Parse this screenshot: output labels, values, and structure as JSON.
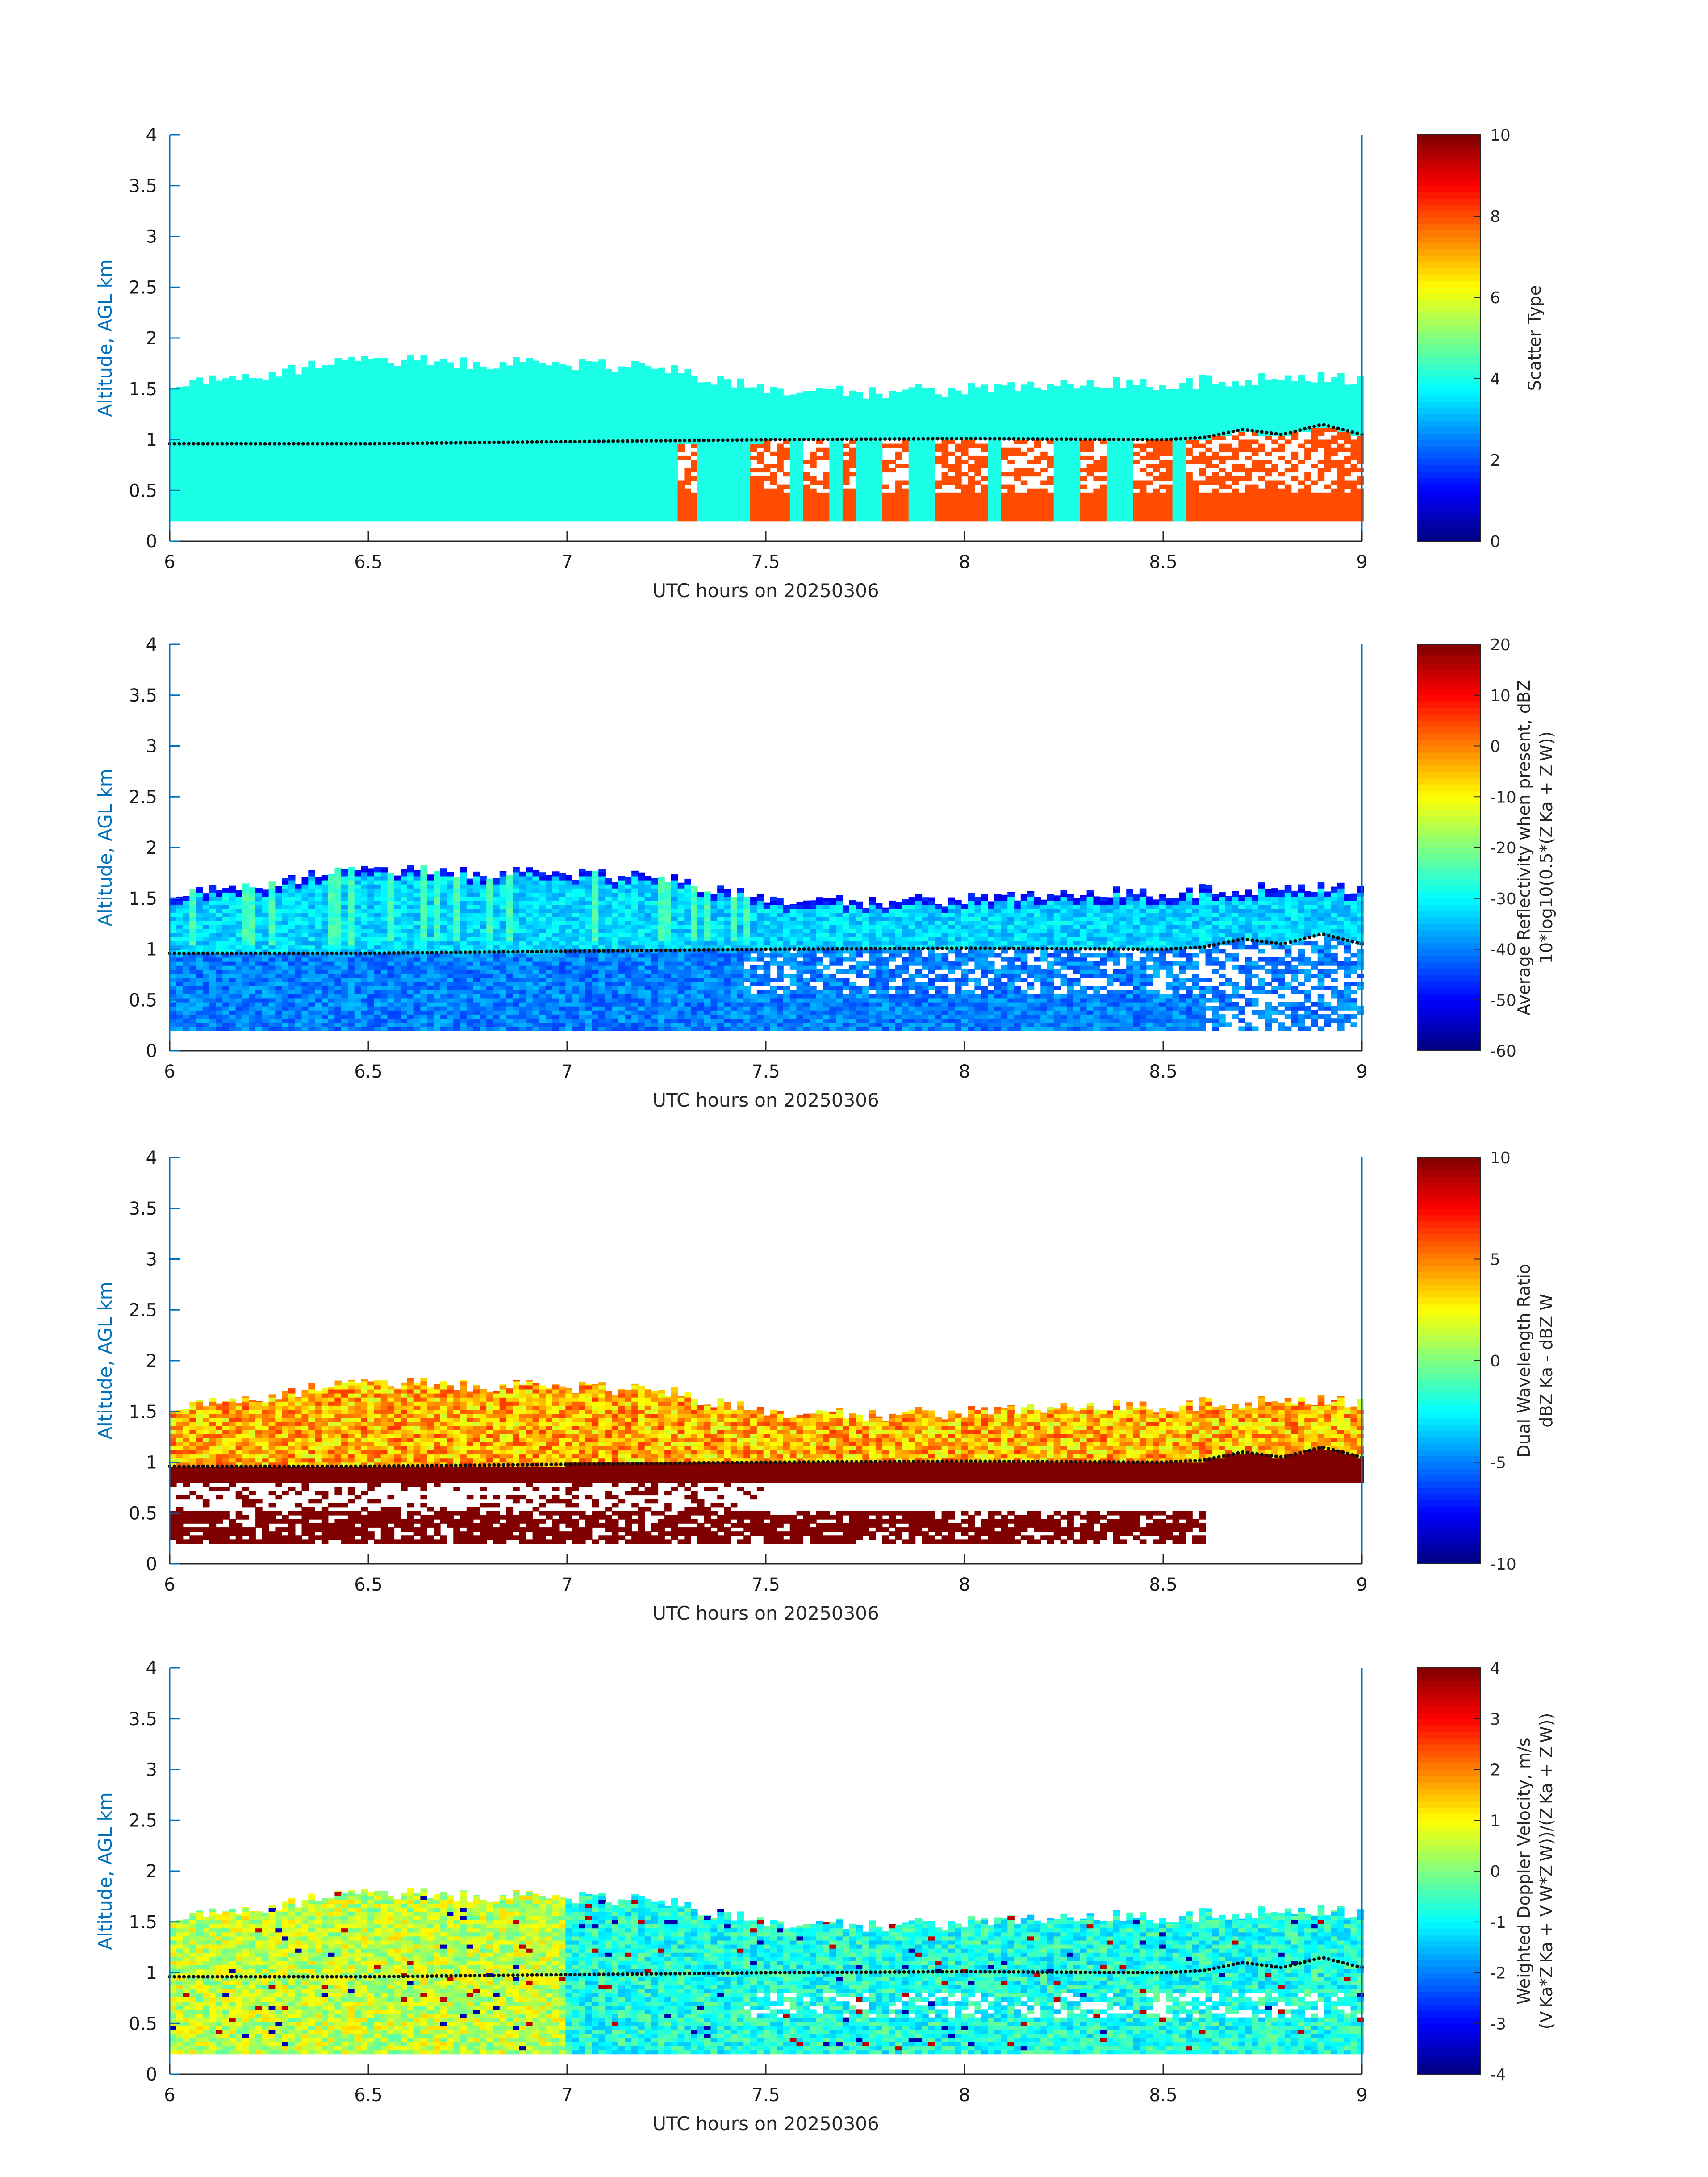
{
  "chart_data": [
    {
      "type": "heatmap",
      "title": "",
      "xlabel": "UTC hours on 20250306",
      "ylabel": "Altitude, AGL km",
      "xlim": [
        6,
        9
      ],
      "ylim": [
        0,
        4
      ],
      "xticks": [
        "6",
        "6.5",
        "7",
        "7.5",
        "8",
        "8.5",
        "9"
      ],
      "yticks": [
        "0",
        "0.5",
        "1",
        "1.5",
        "2",
        "2.5",
        "3",
        "3.5",
        "4"
      ],
      "field": "scatter",
      "colorbar": {
        "label_lines": [
          "Scatter Type"
        ],
        "range": [
          0,
          10
        ],
        "ticks": [
          "0",
          "2",
          "4",
          "6",
          "8",
          "10"
        ]
      },
      "cloud_top_profile": {
        "x": [
          6.0,
          6.25,
          6.5,
          6.75,
          7.0,
          7.25,
          7.5,
          7.75,
          8.0,
          8.25,
          8.5,
          8.75,
          9.0
        ],
        "y": [
          1.55,
          1.65,
          1.8,
          1.75,
          1.75,
          1.7,
          1.5,
          1.45,
          1.5,
          1.55,
          1.55,
          1.6,
          1.6
        ]
      },
      "cloud_base_km": 0.2,
      "melting_layer": {
        "x": [
          6.0,
          6.5,
          7.0,
          7.5,
          8.0,
          8.5,
          8.6,
          8.7,
          8.8,
          8.9,
          9.0
        ],
        "y": [
          0.96,
          0.96,
          0.98,
          1.0,
          1.01,
          1.0,
          1.02,
          1.1,
          1.05,
          1.15,
          1.05
        ]
      },
      "values_note": "background scatter type ~4 (cyan); red columns type ~8 present after 7.3 h below the melting layer"
    },
    {
      "type": "heatmap",
      "title": "",
      "xlabel": "UTC hours on 20250306",
      "ylabel": "Altitude, AGL km",
      "xlim": [
        6,
        9
      ],
      "ylim": [
        0,
        4
      ],
      "xticks": [
        "6",
        "6.5",
        "7",
        "7.5",
        "8",
        "8.5",
        "9"
      ],
      "yticks": [
        "0",
        "0.5",
        "1",
        "1.5",
        "2",
        "2.5",
        "3",
        "3.5",
        "4"
      ],
      "field": "reflectivity",
      "colorbar": {
        "label_lines": [
          "Average Reflectivity when present, dBZ",
          "10*log10(0.5*(Z Ka + Z W))"
        ],
        "range": [
          -60,
          20
        ],
        "ticks": [
          "-60",
          "-50",
          "-40",
          "-30",
          "-20",
          "-10",
          "0",
          "10",
          "20"
        ]
      },
      "cloud_top_profile": {
        "x": [
          6.0,
          6.25,
          6.5,
          6.75,
          7.0,
          7.25,
          7.5,
          7.75,
          8.0,
          8.25,
          8.5,
          8.75,
          9.0
        ],
        "y": [
          1.55,
          1.65,
          1.8,
          1.75,
          1.75,
          1.7,
          1.5,
          1.45,
          1.5,
          1.55,
          1.55,
          1.6,
          1.6
        ]
      },
      "cloud_base_km": 0.2,
      "melting_layer": {
        "x": [
          6.0,
          6.5,
          7.0,
          7.5,
          8.0,
          8.5,
          8.6,
          8.7,
          8.8,
          8.9,
          9.0
        ],
        "y": [
          0.96,
          0.96,
          0.98,
          1.0,
          1.01,
          1.0,
          1.02,
          1.1,
          1.05,
          1.15,
          1.05
        ]
      },
      "values_note": "mostly -45 to -30 dBZ, -25 dBZ streaks near cloud top, -55 dBZ edges"
    },
    {
      "type": "heatmap",
      "title": "",
      "xlabel": "UTC hours on 20250306",
      "ylabel": "Altitude, AGL km",
      "xlim": [
        6,
        9
      ],
      "ylim": [
        0,
        4
      ],
      "xticks": [
        "6",
        "6.5",
        "7",
        "7.5",
        "8",
        "8.5",
        "9"
      ],
      "yticks": [
        "0",
        "0.5",
        "1",
        "1.5",
        "2",
        "2.5",
        "3",
        "3.5",
        "4"
      ],
      "field": "dwr",
      "colorbar": {
        "label_lines": [
          "Dual Wavelength Ratio",
          "dBZ Ka - dBZ W"
        ],
        "range": [
          -10,
          10
        ],
        "ticks": [
          "-10",
          "-5",
          "0",
          "5",
          "10"
        ]
      },
      "cloud_top_profile": {
        "x": [
          6.0,
          6.25,
          6.5,
          6.75,
          7.0,
          7.25,
          7.5,
          7.75,
          8.0,
          8.25,
          8.5,
          8.75,
          9.0
        ],
        "y": [
          1.55,
          1.65,
          1.8,
          1.75,
          1.75,
          1.7,
          1.5,
          1.45,
          1.5,
          1.55,
          1.55,
          1.6,
          1.6
        ]
      },
      "cloud_base_km": 0.2,
      "melting_layer": {
        "x": [
          6.0,
          6.5,
          7.0,
          7.5,
          8.0,
          8.5,
          8.6,
          8.7,
          8.8,
          8.9,
          9.0
        ],
        "y": [
          0.96,
          0.96,
          0.98,
          1.0,
          1.01,
          1.0,
          1.02,
          1.1,
          1.05,
          1.15,
          1.05
        ]
      },
      "values_note": "+3 to +7 dB above 1 km; saturated +10 dB band at 0.85-0.95 km and in the lowest 0.5 km"
    },
    {
      "type": "heatmap",
      "title": "",
      "xlabel": "UTC hours on 20250306",
      "ylabel": "Altitude, AGL km",
      "xlim": [
        6,
        9
      ],
      "ylim": [
        0,
        4
      ],
      "xticks": [
        "6",
        "6.5",
        "7",
        "7.5",
        "8",
        "8.5",
        "9"
      ],
      "yticks": [
        "0",
        "0.5",
        "1",
        "1.5",
        "2",
        "2.5",
        "3",
        "3.5",
        "4"
      ],
      "field": "velocity",
      "colorbar": {
        "label_lines": [
          "Weighted Doppler Velocity, m/s",
          "(V Ka*Z Ka + V W*Z W))/(Z Ka + Z W))"
        ],
        "range": [
          -4,
          4
        ],
        "ticks": [
          "-4",
          "-3",
          "-2",
          "-1",
          "0",
          "1",
          "2",
          "3",
          "4"
        ]
      },
      "cloud_top_profile": {
        "x": [
          6.0,
          6.25,
          6.5,
          6.75,
          7.0,
          7.25,
          7.5,
          7.75,
          8.0,
          8.25,
          8.5,
          8.75,
          9.0
        ],
        "y": [
          1.55,
          1.65,
          1.8,
          1.75,
          1.75,
          1.7,
          1.5,
          1.45,
          1.5,
          1.55,
          1.55,
          1.6,
          1.6
        ]
      },
      "cloud_base_km": 0.2,
      "melting_layer": {
        "x": [
          6.0,
          6.5,
          7.0,
          7.5,
          8.0,
          8.5,
          8.6,
          8.7,
          8.8,
          8.9,
          9.0
        ],
        "y": [
          0.96,
          0.96,
          0.98,
          1.0,
          1.01,
          1.0,
          1.02,
          1.1,
          1.05,
          1.15,
          1.05
        ]
      },
      "values_note": "mostly 0 to +1 m/s before 7 h, -0.5 to -1.5 m/s after 7 h"
    }
  ]
}
